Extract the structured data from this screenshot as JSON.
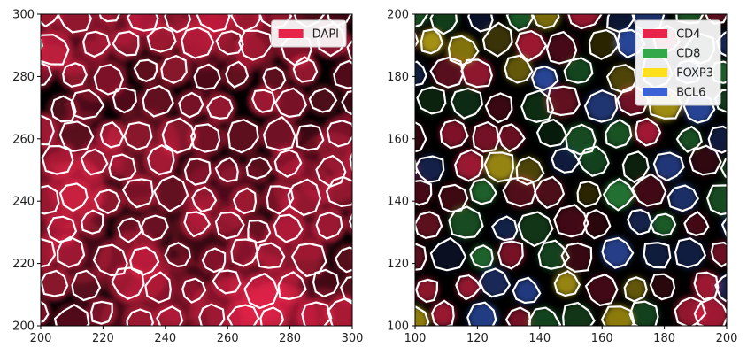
{
  "chart_data": [
    {
      "type": "heatmap",
      "title": "",
      "xlabel": "",
      "ylabel": "",
      "xlim": [
        200,
        300
      ],
      "ylim": [
        200,
        300
      ],
      "xticks": [
        200,
        220,
        240,
        260,
        280,
        300
      ],
      "yticks": [
        200,
        220,
        240,
        260,
        280,
        300
      ],
      "background": "#000000",
      "legend": {
        "placement": "top-right",
        "entries": [
          {
            "name": "DAPI",
            "color": "#e8244a"
          }
        ]
      },
      "segmentation_outlines": "white cell boundaries overlaid on channel image"
    },
    {
      "type": "heatmap",
      "title": "",
      "xlabel": "",
      "ylabel": "",
      "xlim": [
        100,
        200
      ],
      "ylim": [
        100,
        200
      ],
      "xticks": [
        100,
        120,
        140,
        160,
        180,
        200
      ],
      "yticks": [
        100,
        120,
        140,
        160,
        180,
        200
      ],
      "background": "#000000",
      "legend": {
        "placement": "top-right",
        "entries": [
          {
            "name": "CD4",
            "color": "#e8244a"
          },
          {
            "name": "CD8",
            "color": "#33a84a"
          },
          {
            "name": "FOXP3",
            "color": "#ffe01a"
          },
          {
            "name": "BCL6",
            "color": "#3a62d6"
          }
        ]
      },
      "segmentation_outlines": "white cell boundaries overlaid on channel image"
    }
  ]
}
